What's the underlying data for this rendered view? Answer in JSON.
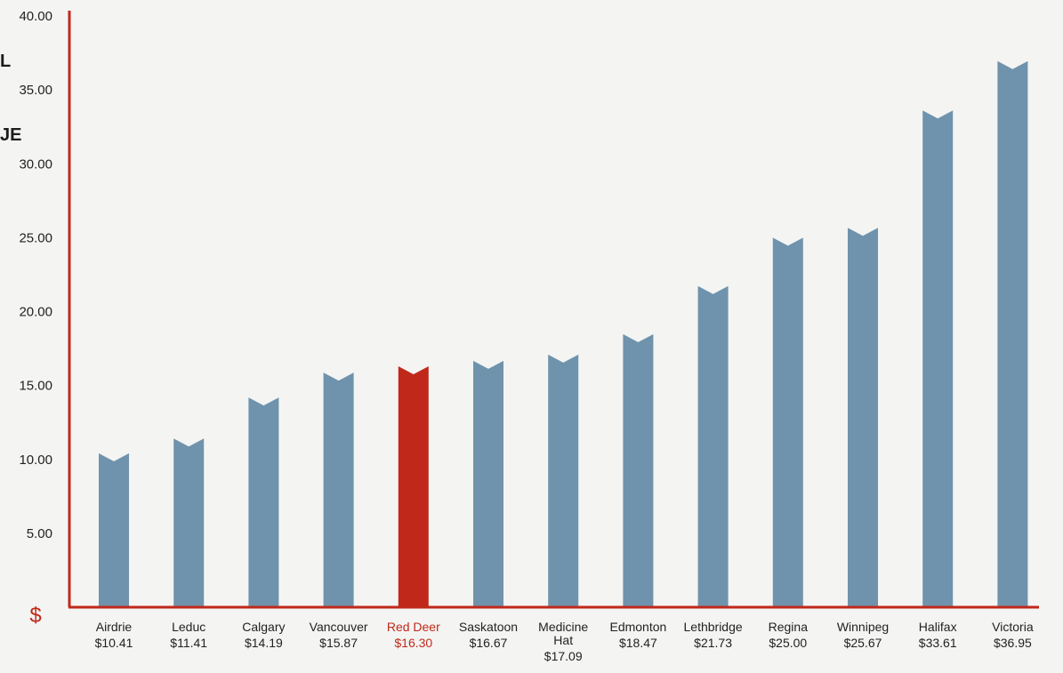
{
  "chart_data": {
    "type": "bar",
    "title_fragments": [
      "L",
      "JE"
    ],
    "y_axis_symbol": "$",
    "ylim": [
      0,
      40
    ],
    "yticks": [
      "5.00",
      "10.00",
      "15.00",
      "20.00",
      "25.00",
      "30.00",
      "35.00",
      "40.00"
    ],
    "categories": [
      {
        "name": "Airdrie",
        "label": "$10.41",
        "value": 10.41
      },
      {
        "name": "Leduc",
        "label": "$11.41",
        "value": 11.41
      },
      {
        "name": "Calgary",
        "label": "$14.19",
        "value": 14.19
      },
      {
        "name": "Vancouver",
        "label": "$15.87",
        "value": 15.87
      },
      {
        "name": "Red Deer",
        "label": "$16.30",
        "value": 16.3,
        "highlight": true
      },
      {
        "name": "Saskatoon",
        "label": "$16.67",
        "value": 16.67
      },
      {
        "name": "Medicine Hat",
        "label": "$17.09",
        "value": 17.09
      },
      {
        "name": "Edmonton",
        "label": "$18.47",
        "value": 18.47
      },
      {
        "name": "Lethbridge",
        "label": "$21.73",
        "value": 21.73
      },
      {
        "name": "Regina",
        "label": "$25.00",
        "value": 25.0
      },
      {
        "name": "Winnipeg",
        "label": "$25.67",
        "value": 25.67
      },
      {
        "name": "Halifax",
        "label": "$33.61",
        "value": 33.61
      },
      {
        "name": "Victoria",
        "label": "$36.95",
        "value": 36.95
      }
    ],
    "colors": {
      "bar": "#6f93ac",
      "highlight": "#c0291a",
      "axis": "#c0291a",
      "text": "#222222"
    },
    "grid": false
  }
}
